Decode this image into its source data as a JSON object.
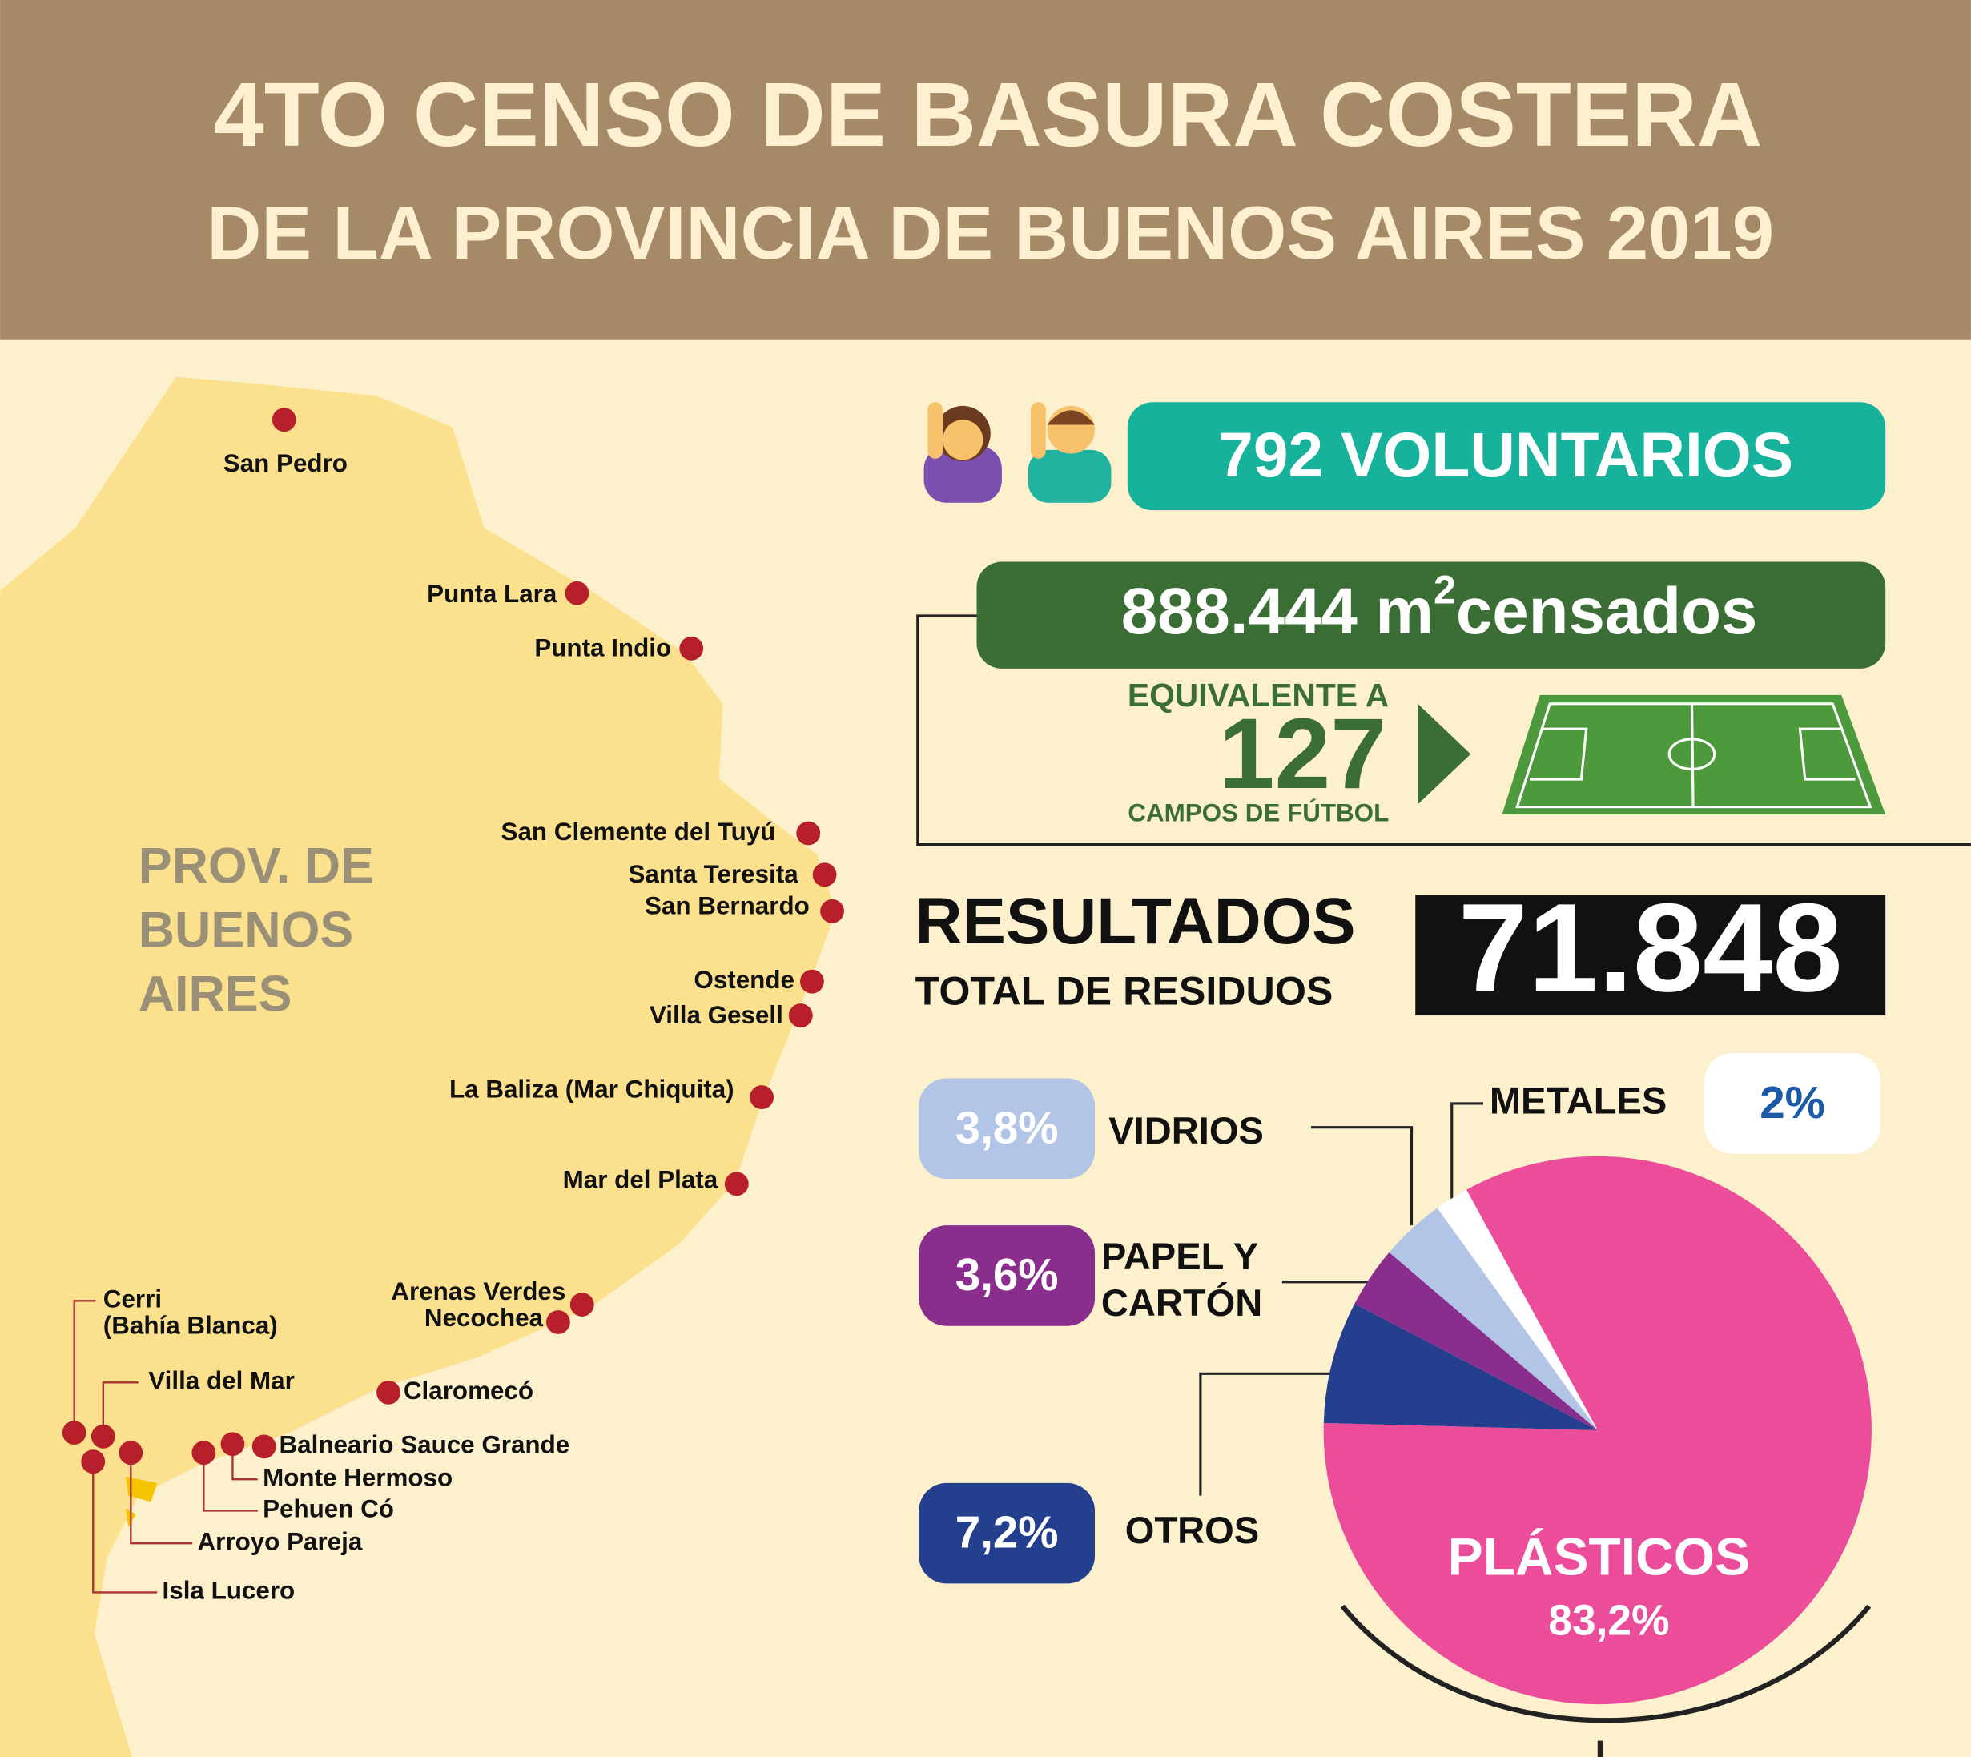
{
  "header": {
    "title_line1": "4TO CENSO DE BASURA COSTERA",
    "title_line2": "DE LA PROVINCIA DE BUENOS AIRES 2019"
  },
  "map": {
    "region_lines": [
      "PROV. DE",
      "BUENOS",
      "AIRES"
    ],
    "locations": [
      {
        "lines": [
          "San Pedro"
        ]
      },
      {
        "lines": [
          "Punta Lara"
        ]
      },
      {
        "lines": [
          "Punta Indio"
        ]
      },
      {
        "lines": [
          "San Clemente del Tuyú"
        ]
      },
      {
        "lines": [
          "Santa Teresita"
        ]
      },
      {
        "lines": [
          "San Bernardo"
        ]
      },
      {
        "lines": [
          "Ostende"
        ]
      },
      {
        "lines": [
          "Villa Gesell"
        ]
      },
      {
        "lines": [
          "La Baliza (Mar Chiquita)"
        ]
      },
      {
        "lines": [
          "Mar del Plata"
        ]
      },
      {
        "lines": [
          "Arenas Verdes"
        ]
      },
      {
        "lines": [
          "Necochea"
        ]
      },
      {
        "lines": [
          "Claromecó"
        ]
      },
      {
        "lines": [
          "Balneario Sauce Grande"
        ]
      },
      {
        "lines": [
          "Monte Hermoso"
        ]
      },
      {
        "lines": [
          "Pehuen Có"
        ]
      },
      {
        "lines": [
          "Arroyo Pareja"
        ]
      },
      {
        "lines": [
          "Isla Lucero"
        ]
      },
      {
        "lines": [
          "Villa del Mar"
        ]
      },
      {
        "lines": [
          "Cerri",
          "(Bahía Blanca)"
        ]
      }
    ]
  },
  "stats": {
    "volunteers": "792 VOLUNTARIOS",
    "area": {
      "number": "888.444 m",
      "exponent": "2",
      "suffix": "censados"
    },
    "equivalent_label": "EQUIVALENTE A",
    "equivalent_value": "127",
    "equivalent_unit": "CAMPOS DE FÚTBOL",
    "results_title": "RESULTADOS",
    "results_subtitle": "TOTAL DE RESIDUOS",
    "results_total": "71.848"
  },
  "chart_data": {
    "type": "pie",
    "categories": [
      "PLÁSTICOS",
      "OTROS",
      "PAPEL Y CARTÓN",
      "VIDRIOS",
      "METALES"
    ],
    "values": [
      83.2,
      7.2,
      3.6,
      3.8,
      2
    ],
    "value_labels": [
      "83,2%",
      "7,2%",
      "3,6%",
      "3,8%",
      "2%"
    ],
    "colors": [
      "#ec4d9b",
      "#233f8d",
      "#8a2e8e",
      "#b3c5e6",
      "#ffffff"
    ]
  }
}
